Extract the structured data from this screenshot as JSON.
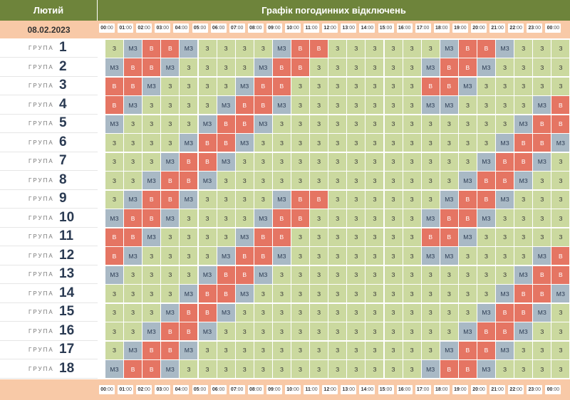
{
  "header": {
    "month": "Лютий",
    "title": "Графік погодинних відключень",
    "date": "08.02.2023"
  },
  "group_word": "ГРУПА",
  "hours": [
    "00:00",
    "01:00",
    "02:00",
    "03:00",
    "04:00",
    "05:00",
    "06:00",
    "07:00",
    "08:00",
    "09:00",
    "10:00",
    "11:00",
    "12:00",
    "13:00",
    "14:00",
    "15:00",
    "16:00",
    "17:00",
    "18:00",
    "19:00",
    "20:00",
    "21:00",
    "22:00",
    "23:00",
    "00:00"
  ],
  "status_labels": {
    "z": "З",
    "mz": "МЗ",
    "v": "В"
  },
  "colors": {
    "z": "#cbd99f",
    "mz": "#a9b9c5",
    "v": "#e57563",
    "header": "#6e843b",
    "band": "#f8c9a7"
  },
  "groups": [
    {
      "number": "1",
      "cells": [
        "z",
        "mz",
        "v",
        "v",
        "mz",
        "z",
        "z",
        "z",
        "z",
        "mz",
        "v",
        "v",
        "z",
        "z",
        "z",
        "z",
        "z",
        "z",
        "mz",
        "v",
        "v",
        "mz",
        "z",
        "z",
        "z"
      ]
    },
    {
      "number": "2",
      "cells": [
        "mz",
        "v",
        "v",
        "mz",
        "z",
        "z",
        "z",
        "z",
        "mz",
        "v",
        "v",
        "z",
        "z",
        "z",
        "z",
        "z",
        "z",
        "mz",
        "v",
        "v",
        "mz",
        "z",
        "z",
        "z",
        "z"
      ]
    },
    {
      "number": "3",
      "cells": [
        "v",
        "v",
        "mz",
        "z",
        "z",
        "z",
        "z",
        "mz",
        "v",
        "v",
        "z",
        "z",
        "z",
        "z",
        "z",
        "z",
        "z",
        "v",
        "v",
        "mz",
        "z",
        "z",
        "z",
        "z",
        "z"
      ]
    },
    {
      "number": "4",
      "cells": [
        "v",
        "mz",
        "z",
        "z",
        "z",
        "z",
        "mz",
        "v",
        "v",
        "mz",
        "z",
        "z",
        "z",
        "z",
        "z",
        "z",
        "z",
        "mz",
        "mz",
        "z",
        "z",
        "z",
        "z",
        "mz",
        "v"
      ]
    },
    {
      "number": "5",
      "cells": [
        "mz",
        "z",
        "z",
        "z",
        "z",
        "mz",
        "v",
        "v",
        "mz",
        "z",
        "z",
        "z",
        "z",
        "z",
        "z",
        "z",
        "z",
        "z",
        "z",
        "z",
        "z",
        "z",
        "mz",
        "v",
        "v"
      ]
    },
    {
      "number": "6",
      "cells": [
        "z",
        "z",
        "z",
        "z",
        "mz",
        "v",
        "v",
        "mz",
        "z",
        "z",
        "z",
        "z",
        "z",
        "z",
        "z",
        "z",
        "z",
        "z",
        "z",
        "z",
        "z",
        "mz",
        "v",
        "v",
        "mz"
      ]
    },
    {
      "number": "7",
      "cells": [
        "z",
        "z",
        "z",
        "mz",
        "v",
        "v",
        "mz",
        "z",
        "z",
        "z",
        "z",
        "z",
        "z",
        "z",
        "z",
        "z",
        "z",
        "z",
        "z",
        "z",
        "mz",
        "v",
        "v",
        "mz",
        "z"
      ]
    },
    {
      "number": "8",
      "cells": [
        "z",
        "z",
        "mz",
        "v",
        "v",
        "mz",
        "z",
        "z",
        "z",
        "z",
        "z",
        "z",
        "z",
        "z",
        "z",
        "z",
        "z",
        "z",
        "z",
        "mz",
        "v",
        "v",
        "mz",
        "z",
        "z"
      ]
    },
    {
      "number": "9",
      "cells": [
        "z",
        "mz",
        "v",
        "v",
        "mz",
        "z",
        "z",
        "z",
        "z",
        "mz",
        "v",
        "v",
        "z",
        "z",
        "z",
        "z",
        "z",
        "z",
        "mz",
        "v",
        "v",
        "mz",
        "z",
        "z",
        "z"
      ]
    },
    {
      "number": "10",
      "cells": [
        "mz",
        "v",
        "v",
        "mz",
        "z",
        "z",
        "z",
        "z",
        "mz",
        "v",
        "v",
        "z",
        "z",
        "z",
        "z",
        "z",
        "z",
        "mz",
        "v",
        "v",
        "mz",
        "z",
        "z",
        "z",
        "z"
      ]
    },
    {
      "number": "11",
      "cells": [
        "v",
        "v",
        "mz",
        "z",
        "z",
        "z",
        "z",
        "mz",
        "v",
        "v",
        "z",
        "z",
        "z",
        "z",
        "z",
        "z",
        "z",
        "v",
        "v",
        "mz",
        "z",
        "z",
        "z",
        "z",
        "z"
      ]
    },
    {
      "number": "12",
      "cells": [
        "v",
        "mz",
        "z",
        "z",
        "z",
        "z",
        "mz",
        "v",
        "v",
        "mz",
        "z",
        "z",
        "z",
        "z",
        "z",
        "z",
        "z",
        "mz",
        "mz",
        "z",
        "z",
        "z",
        "z",
        "mz",
        "v"
      ]
    },
    {
      "number": "13",
      "cells": [
        "mz",
        "z",
        "z",
        "z",
        "z",
        "mz",
        "v",
        "v",
        "mz",
        "z",
        "z",
        "z",
        "z",
        "z",
        "z",
        "z",
        "z",
        "z",
        "z",
        "z",
        "z",
        "z",
        "mz",
        "v",
        "v"
      ]
    },
    {
      "number": "14",
      "cells": [
        "z",
        "z",
        "z",
        "z",
        "mz",
        "v",
        "v",
        "mz",
        "z",
        "z",
        "z",
        "z",
        "z",
        "z",
        "z",
        "z",
        "z",
        "z",
        "z",
        "z",
        "z",
        "mz",
        "v",
        "v",
        "mz"
      ]
    },
    {
      "number": "15",
      "cells": [
        "z",
        "z",
        "z",
        "mz",
        "v",
        "v",
        "mz",
        "z",
        "z",
        "z",
        "z",
        "z",
        "z",
        "z",
        "z",
        "z",
        "z",
        "z",
        "z",
        "z",
        "mz",
        "v",
        "v",
        "mz",
        "z"
      ]
    },
    {
      "number": "16",
      "cells": [
        "z",
        "z",
        "mz",
        "v",
        "v",
        "mz",
        "z",
        "z",
        "z",
        "z",
        "z",
        "z",
        "z",
        "z",
        "z",
        "z",
        "z",
        "z",
        "z",
        "mz",
        "v",
        "v",
        "mz",
        "z",
        "z"
      ]
    },
    {
      "number": "17",
      "cells": [
        "z",
        "mz",
        "v",
        "v",
        "mz",
        "z",
        "z",
        "z",
        "z",
        "z",
        "z",
        "z",
        "z",
        "z",
        "z",
        "z",
        "z",
        "z",
        "mz",
        "v",
        "v",
        "mz",
        "z",
        "z",
        "z"
      ]
    },
    {
      "number": "18",
      "cells": [
        "mz",
        "v",
        "v",
        "mz",
        "z",
        "z",
        "z",
        "z",
        "z",
        "z",
        "z",
        "z",
        "z",
        "z",
        "z",
        "z",
        "z",
        "mz",
        "v",
        "v",
        "mz",
        "z",
        "z",
        "z",
        "z"
      ]
    }
  ]
}
